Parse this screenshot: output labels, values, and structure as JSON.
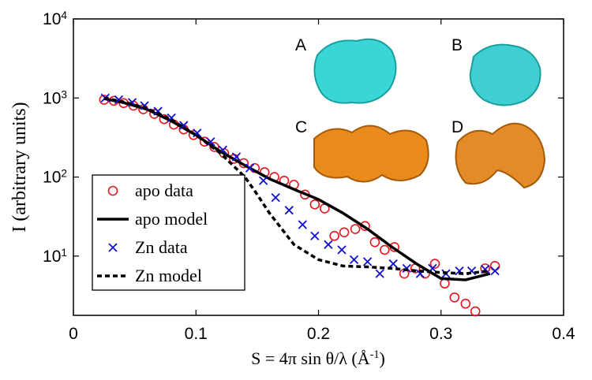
{
  "chart_data": {
    "type": "line",
    "xlabel": "S = 4π sin θ/λ (Å^-1)",
    "ylabel": "I (arbitrary units)",
    "xlim": [
      0,
      0.4
    ],
    "xticks": [
      0,
      0.1,
      0.2,
      0.3,
      0.4
    ],
    "ylim": [
      1.78,
      10000
    ],
    "yscale": "log",
    "yticks": [
      {
        "value": 10,
        "label": "10^1"
      },
      {
        "value": 100,
        "label": "10^2"
      },
      {
        "value": 1000,
        "label": "10^3"
      },
      {
        "value": 10000,
        "label": "10^4"
      }
    ],
    "grid": false,
    "legend": "center left",
    "annotations": [
      "A",
      "B",
      "C",
      "D"
    ],
    "series": [
      {
        "name": "apo data",
        "color": "#e8141c",
        "style": "markers",
        "marker": "circle",
        "x": [
          0.025,
          0.033,
          0.041,
          0.049,
          0.057,
          0.066,
          0.074,
          0.082,
          0.09,
          0.098,
          0.107,
          0.115,
          0.123,
          0.131,
          0.139,
          0.148,
          0.156,
          0.164,
          0.172,
          0.18,
          0.189,
          0.197,
          0.205,
          0.213,
          0.221,
          0.23,
          0.238,
          0.246,
          0.254,
          0.262,
          0.27,
          0.279,
          0.287,
          0.295,
          0.303,
          0.311,
          0.32,
          0.328,
          0.336,
          0.344
        ],
        "values": [
          950,
          920,
          860,
          800,
          720,
          630,
          540,
          460,
          400,
          340,
          280,
          240,
          200,
          170,
          150,
          130,
          115,
          100,
          90,
          80,
          60,
          45,
          40,
          18,
          20,
          22,
          24,
          15,
          12,
          13,
          6,
          7,
          6,
          8,
          4.5,
          3,
          2.5,
          2,
          7,
          7.5
        ]
      },
      {
        "name": "apo model",
        "color": "#000000",
        "style": "solid",
        "x": [
          0.025,
          0.04,
          0.06,
          0.08,
          0.1,
          0.12,
          0.14,
          0.16,
          0.18,
          0.2,
          0.22,
          0.24,
          0.26,
          0.28,
          0.3,
          0.32,
          0.34
        ],
        "values": [
          980,
          880,
          720,
          510,
          340,
          210,
          140,
          95,
          70,
          52,
          35,
          22,
          13,
          8,
          5.2,
          5,
          6
        ]
      },
      {
        "name": "Zn data",
        "color": "#1010d0",
        "style": "markers",
        "marker": "x",
        "x": [
          0.026,
          0.037,
          0.048,
          0.058,
          0.069,
          0.08,
          0.09,
          0.101,
          0.112,
          0.122,
          0.133,
          0.144,
          0.155,
          0.165,
          0.176,
          0.187,
          0.197,
          0.208,
          0.219,
          0.229,
          0.24,
          0.25,
          0.261,
          0.272,
          0.283,
          0.293,
          0.304,
          0.315,
          0.325,
          0.336,
          0.344
        ],
        "values": [
          1000,
          950,
          880,
          800,
          680,
          560,
          450,
          360,
          280,
          220,
          180,
          130,
          90,
          55,
          38,
          25,
          18,
          14,
          12,
          9,
          8.5,
          6,
          8,
          7,
          6,
          7,
          6,
          6.5,
          6.5,
          6.8,
          6.5
        ]
      },
      {
        "name": "Zn model",
        "color": "#000000",
        "style": "dashed",
        "x": [
          0.025,
          0.04,
          0.06,
          0.08,
          0.1,
          0.12,
          0.14,
          0.15,
          0.16,
          0.18,
          0.2,
          0.22,
          0.24,
          0.26,
          0.28,
          0.3,
          0.32,
          0.34
        ],
        "values": [
          1000,
          900,
          740,
          530,
          340,
          200,
          100,
          60,
          35,
          14,
          9,
          7.5,
          7.3,
          7,
          6.5,
          6.2,
          6,
          6.5
        ]
      }
    ]
  }
}
